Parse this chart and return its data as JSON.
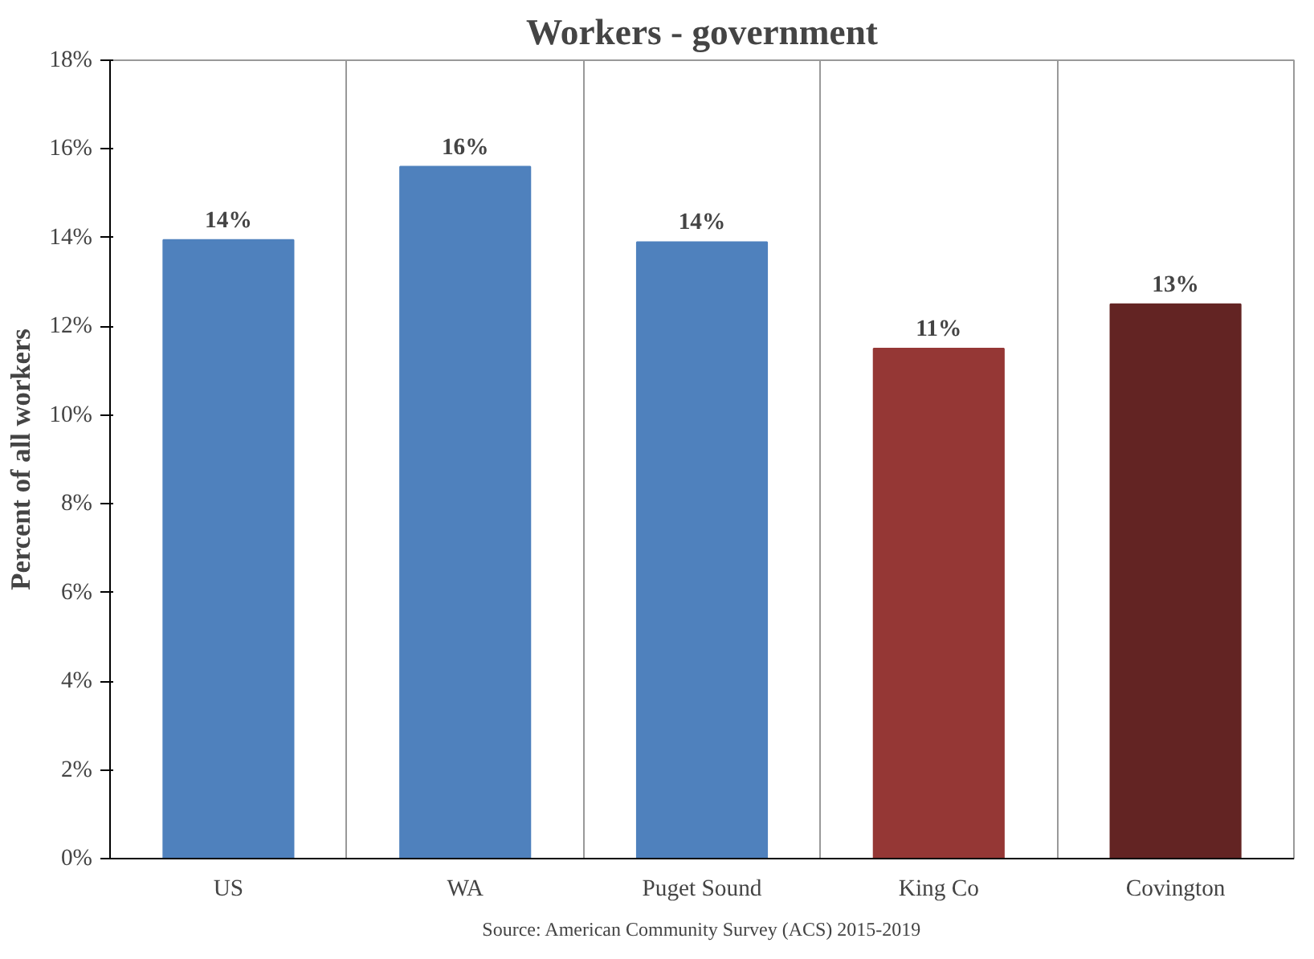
{
  "chart_data": {
    "type": "bar",
    "title": "Workers - government",
    "ylabel": "Percent of all workers",
    "categories": [
      "US",
      "WA",
      "Puget Sound",
      "King Co",
      "Covington"
    ],
    "values": [
      13.95,
      15.6,
      13.9,
      11.5,
      12.5
    ],
    "colors": [
      "#4f81bd",
      "#4f81bd",
      "#4f81bd",
      "#953735",
      "#632423"
    ],
    "value_labels": [
      "14%",
      "16%",
      "14%",
      "11%",
      "13%"
    ],
    "ylim": [
      0,
      18
    ],
    "yticks": [
      {
        "value": 0,
        "label": "0%"
      },
      {
        "value": 2,
        "label": "2%"
      },
      {
        "value": 4,
        "label": "4%"
      },
      {
        "value": 6,
        "label": "6%"
      },
      {
        "value": 8,
        "label": "8%"
      },
      {
        "value": 10,
        "label": "10%"
      },
      {
        "value": 12,
        "label": "12%"
      },
      {
        "value": 14,
        "label": "14%"
      },
      {
        "value": 16,
        "label": "16%"
      },
      {
        "value": 18,
        "label": "18%"
      }
    ],
    "grid": "x",
    "annotations": [
      "Source: American Community Survey (ACS) 2015-2019"
    ]
  }
}
